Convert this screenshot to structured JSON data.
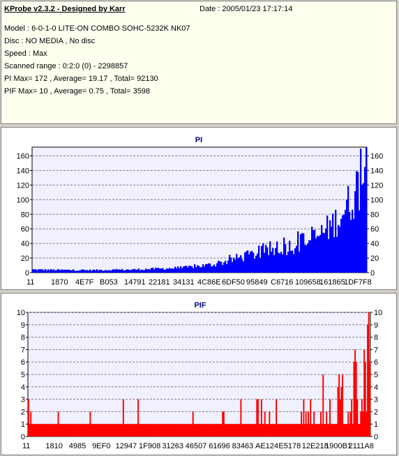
{
  "header": {
    "title": "KProbe v2.3.2 - Designed by Karr",
    "date": "Date : 2005/01/23 17:17:14",
    "lines": [
      "Model : 6-0-1-0 LITE-ON COMBO SOHC-5232K NK07",
      "Disc : NO MEDIA , No disc",
      "Speed : Max",
      "Scanned range : 0:2:0 (0) - 2298857",
      "PI Max= 172 , Average= 19.17 , Total= 92130",
      "PIF Max= 10 , Average= 0.75 , Total= 3598"
    ]
  },
  "chart_data": [
    {
      "type": "bar",
      "title": "PI",
      "color": "#0000ff",
      "ylim": [
        0,
        172
      ],
      "yticks": [
        0,
        20,
        40,
        60,
        80,
        100,
        120,
        140,
        160
      ],
      "xticklabels": [
        "11",
        "1870",
        "4E7F",
        "B053",
        "14791",
        "22181",
        "34131",
        "4C86E",
        "6DF50",
        "95849",
        "C6716",
        "109658",
        "161865",
        "1DF7F8"
      ],
      "grid": "horizontal dashed",
      "profile_x": [
        0,
        0.15,
        0.3,
        0.45,
        0.55,
        0.62,
        0.7,
        0.78,
        0.85,
        0.9,
        0.95,
        0.98,
        1.0
      ],
      "profile_y": [
        5,
        4,
        5,
        8,
        14,
        25,
        35,
        45,
        58,
        80,
        115,
        150,
        172
      ]
    },
    {
      "type": "bar",
      "title": "PIF",
      "color": "#ff0000",
      "ylim": [
        0,
        10
      ],
      "yticks": [
        0,
        1,
        2,
        3,
        4,
        5,
        6,
        7,
        8,
        9,
        10
      ],
      "xticklabels": [
        "11",
        "1810",
        "4985",
        "9EF0",
        "12947",
        "1F908",
        "31263",
        "46507",
        "61696",
        "83463",
        "AE124",
        "E5178",
        "12E218",
        "1900B1",
        "2111A8"
      ],
      "grid": "horizontal dashed",
      "baseline": 1,
      "max": 10
    }
  ]
}
